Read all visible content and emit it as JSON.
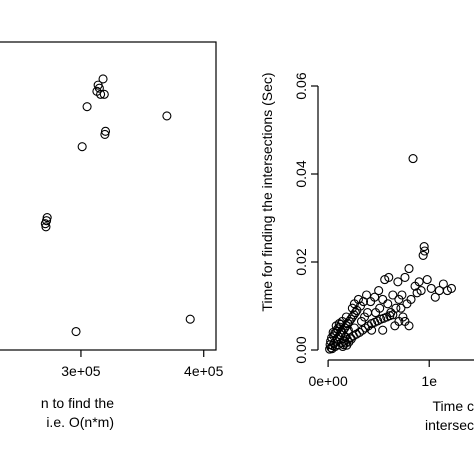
{
  "chart_data": [
    {
      "type": "scatter",
      "panel": "left",
      "xlabel_lines": [
        "n to find the",
        "i.e. O(n*m)"
      ],
      "ylabel": "",
      "xlim": [
        230000,
        410000
      ],
      "ylim": [
        0,
        1
      ],
      "x_ticks": [
        300000,
        400000
      ],
      "x_tick_labels": [
        "3e+05",
        "4e+05"
      ],
      "points": [
        {
          "x": 305000,
          "y": 0.79
        },
        {
          "x": 301000,
          "y": 0.66
        },
        {
          "x": 313000,
          "y": 0.84
        },
        {
          "x": 314000,
          "y": 0.86
        },
        {
          "x": 315000,
          "y": 0.85
        },
        {
          "x": 316000,
          "y": 0.83
        },
        {
          "x": 318000,
          "y": 0.88
        },
        {
          "x": 319000,
          "y": 0.83
        },
        {
          "x": 319500,
          "y": 0.7
        },
        {
          "x": 320000,
          "y": 0.71
        },
        {
          "x": 370000,
          "y": 0.76
        },
        {
          "x": 271000,
          "y": 0.41
        },
        {
          "x": 271500,
          "y": 0.4
        },
        {
          "x": 272000,
          "y": 0.42
        },
        {
          "x": 272500,
          "y": 0.43
        },
        {
          "x": 296000,
          "y": 0.06
        },
        {
          "x": 389000,
          "y": 0.1
        }
      ]
    },
    {
      "type": "scatter",
      "panel": "right",
      "ylabel": "Time for finding the intersections (Sec)",
      "xlabel_lines": [
        "Time c",
        "intersec"
      ],
      "xlim": [
        -100000,
        1700000
      ],
      "ylim": [
        0,
        0.07
      ],
      "y_ticks": [
        0,
        0.02,
        0.04,
        0.06
      ],
      "y_tick_labels": [
        "0.00",
        "0.02",
        "0.04",
        "0.06"
      ],
      "x_ticks": [
        0,
        1000000
      ],
      "x_tick_labels": [
        "0e+00",
        "1e"
      ],
      "points": [
        {
          "x": 30000,
          "y": 0.0005
        },
        {
          "x": 45000,
          "y": 0.001
        },
        {
          "x": 60000,
          "y": 0.0015
        },
        {
          "x": 75000,
          "y": 0.002
        },
        {
          "x": 90000,
          "y": 0.0025
        },
        {
          "x": 105000,
          "y": 0.003
        },
        {
          "x": 120000,
          "y": 0.0035
        },
        {
          "x": 135000,
          "y": 0.004
        },
        {
          "x": 150000,
          "y": 0.0045
        },
        {
          "x": 165000,
          "y": 0.005
        },
        {
          "x": 180000,
          "y": 0.0055
        },
        {
          "x": 195000,
          "y": 0.006
        },
        {
          "x": 210000,
          "y": 0.0065
        },
        {
          "x": 225000,
          "y": 0.007
        },
        {
          "x": 240000,
          "y": 0.0075
        },
        {
          "x": 255000,
          "y": 0.008
        },
        {
          "x": 270000,
          "y": 0.0085
        },
        {
          "x": 285000,
          "y": 0.009
        },
        {
          "x": 40000,
          "y": 0.0003
        },
        {
          "x": 70000,
          "y": 0.0008
        },
        {
          "x": 100000,
          "y": 0.0012
        },
        {
          "x": 130000,
          "y": 0.0016
        },
        {
          "x": 160000,
          "y": 0.002
        },
        {
          "x": 190000,
          "y": 0.0024
        },
        {
          "x": 220000,
          "y": 0.0028
        },
        {
          "x": 250000,
          "y": 0.0032
        },
        {
          "x": 280000,
          "y": 0.0036
        },
        {
          "x": 310000,
          "y": 0.004
        },
        {
          "x": 340000,
          "y": 0.0045
        },
        {
          "x": 370000,
          "y": 0.005
        },
        {
          "x": 400000,
          "y": 0.0055
        },
        {
          "x": 430000,
          "y": 0.006
        },
        {
          "x": 460000,
          "y": 0.0063
        },
        {
          "x": 490000,
          "y": 0.0066
        },
        {
          "x": 520000,
          "y": 0.007
        },
        {
          "x": 550000,
          "y": 0.0072
        },
        {
          "x": 580000,
          "y": 0.0075
        },
        {
          "x": 610000,
          "y": 0.0078
        },
        {
          "x": 640000,
          "y": 0.008
        },
        {
          "x": 320000,
          "y": 0.01
        },
        {
          "x": 350000,
          "y": 0.011
        },
        {
          "x": 300000,
          "y": 0.0115
        },
        {
          "x": 380000,
          "y": 0.0125
        },
        {
          "x": 420000,
          "y": 0.011
        },
        {
          "x": 460000,
          "y": 0.012
        },
        {
          "x": 500000,
          "y": 0.0135
        },
        {
          "x": 540000,
          "y": 0.0115
        },
        {
          "x": 560000,
          "y": 0.016
        },
        {
          "x": 600000,
          "y": 0.0165
        },
        {
          "x": 640000,
          "y": 0.0125
        },
        {
          "x": 690000,
          "y": 0.0155
        },
        {
          "x": 720000,
          "y": 0.0095
        },
        {
          "x": 760000,
          "y": 0.0065
        },
        {
          "x": 800000,
          "y": 0.0055
        },
        {
          "x": 760000,
          "y": 0.0165
        },
        {
          "x": 800000,
          "y": 0.0185
        },
        {
          "x": 840000,
          "y": 0.0435
        },
        {
          "x": 880000,
          "y": 0.013
        },
        {
          "x": 900000,
          "y": 0.0155
        },
        {
          "x": 940000,
          "y": 0.0215
        },
        {
          "x": 950000,
          "y": 0.0235
        },
        {
          "x": 955000,
          "y": 0.0225
        },
        {
          "x": 980000,
          "y": 0.016
        },
        {
          "x": 1020000,
          "y": 0.014
        },
        {
          "x": 1060000,
          "y": 0.012
        },
        {
          "x": 1100000,
          "y": 0.0135
        },
        {
          "x": 1140000,
          "y": 0.015
        },
        {
          "x": 1180000,
          "y": 0.0135
        },
        {
          "x": 1220000,
          "y": 0.014
        },
        {
          "x": 180000,
          "y": 0.0075
        },
        {
          "x": 240000,
          "y": 0.0095
        },
        {
          "x": 260000,
          "y": 0.0105
        },
        {
          "x": 430000,
          "y": 0.0045
        },
        {
          "x": 470000,
          "y": 0.0085
        },
        {
          "x": 510000,
          "y": 0.0095
        },
        {
          "x": 590000,
          "y": 0.0105
        },
        {
          "x": 620000,
          "y": 0.0085
        },
        {
          "x": 670000,
          "y": 0.0095
        },
        {
          "x": 700000,
          "y": 0.0115
        },
        {
          "x": 730000,
          "y": 0.0125
        },
        {
          "x": 780000,
          "y": 0.0105
        },
        {
          "x": 820000,
          "y": 0.0115
        },
        {
          "x": 860000,
          "y": 0.0145
        },
        {
          "x": 920000,
          "y": 0.0135
        },
        {
          "x": 50000,
          "y": 0.004
        },
        {
          "x": 80000,
          "y": 0.0055
        },
        {
          "x": 110000,
          "y": 0.006
        },
        {
          "x": 140000,
          "y": 0.0065
        },
        {
          "x": 170000,
          "y": 0.003
        },
        {
          "x": 200000,
          "y": 0.0045
        },
        {
          "x": 230000,
          "y": 0.0025
        },
        {
          "x": 260000,
          "y": 0.005
        },
        {
          "x": 330000,
          "y": 0.0065
        },
        {
          "x": 360000,
          "y": 0.0075
        },
        {
          "x": 390000,
          "y": 0.0085
        },
        {
          "x": 540000,
          "y": 0.0045
        },
        {
          "x": 660000,
          "y": 0.0055
        },
        {
          "x": 700000,
          "y": 0.0065
        },
        {
          "x": 740000,
          "y": 0.0075
        },
        {
          "x": 15000,
          "y": 0.0002
        },
        {
          "x": 20000,
          "y": 0.0012
        },
        {
          "x": 25000,
          "y": 0.002
        },
        {
          "x": 35000,
          "y": 0.0028
        },
        {
          "x": 55000,
          "y": 0.0032
        },
        {
          "x": 65000,
          "y": 0.0038
        },
        {
          "x": 85000,
          "y": 0.0042
        },
        {
          "x": 95000,
          "y": 0.0048
        },
        {
          "x": 115000,
          "y": 0.0052
        },
        {
          "x": 125000,
          "y": 0.0058
        },
        {
          "x": 145000,
          "y": 0.0008
        },
        {
          "x": 155000,
          "y": 0.0012
        },
        {
          "x": 175000,
          "y": 0.0016
        },
        {
          "x": 185000,
          "y": 0.0011
        },
        {
          "x": 205000,
          "y": 0.0018
        }
      ]
    }
  ]
}
